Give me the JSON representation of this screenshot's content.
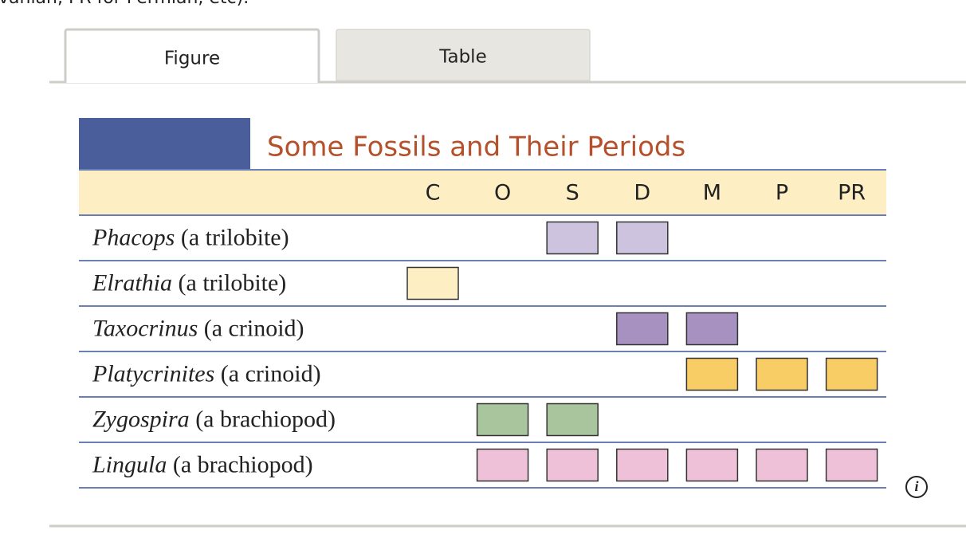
{
  "intro": "vanian, PR for Permian, etc).",
  "tabs": [
    "Figure",
    "Table"
  ],
  "figure": {
    "title": "Some Fossils and Their Periods",
    "columns": [
      "C",
      "O",
      "S",
      "D",
      "M",
      "P",
      "PR"
    ],
    "rows": [
      {
        "genus": "Phacops",
        "description": "(a trilobite)",
        "periods": [
          "S",
          "D"
        ],
        "color": "#cdc3df"
      },
      {
        "genus": "Elrathia",
        "description": "(a trilobite)",
        "periods": [
          "C"
        ],
        "color": "#fdefc3"
      },
      {
        "genus": "Taxocrinus",
        "description": "(a crinoid)",
        "periods": [
          "D",
          "M"
        ],
        "color": "#a691c0"
      },
      {
        "genus": "Platycrinites",
        "description": "(a crinoid)",
        "periods": [
          "M",
          "P",
          "PR"
        ],
        "color": "#f9cd66"
      },
      {
        "genus": "Zygospira",
        "description": "(a brachiopod)",
        "periods": [
          "O",
          "S"
        ],
        "color": "#a9c59e"
      },
      {
        "genus": "Lingula",
        "description": "(a brachiopod)",
        "periods": [
          "O",
          "S",
          "D",
          "M",
          "P",
          "PR"
        ],
        "color": "#eec1d8"
      }
    ]
  }
}
